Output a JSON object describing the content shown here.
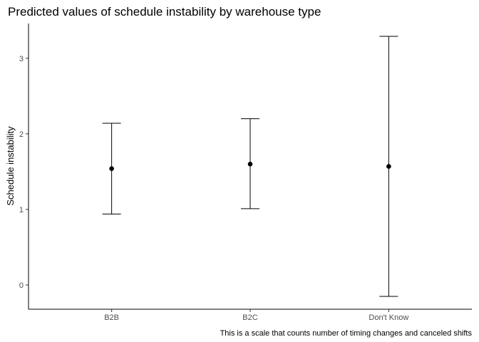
{
  "chart_data": {
    "type": "errorbar",
    "title": "Predicted values of schedule instability by warehouse type",
    "xlabel": "",
    "ylabel": "Schedule instability",
    "caption": "This is a scale that counts number of timing changes and canceled shifts",
    "categories": [
      "B2B",
      "B2C",
      "Don't Know"
    ],
    "estimate": [
      1.54,
      1.6,
      1.57
    ],
    "lower": [
      0.94,
      1.01,
      -0.15
    ],
    "upper": [
      2.14,
      2.2,
      3.29
    ],
    "y_ticks": [
      0,
      1,
      2,
      3
    ],
    "y_tick_labels": [
      "0",
      "1",
      "2",
      "3"
    ],
    "ylim": [
      -0.32,
      3.46
    ],
    "grid": false,
    "colors": {
      "mark": "#000000",
      "axis": "#000000",
      "tick_text": "#4d4d4d"
    }
  }
}
